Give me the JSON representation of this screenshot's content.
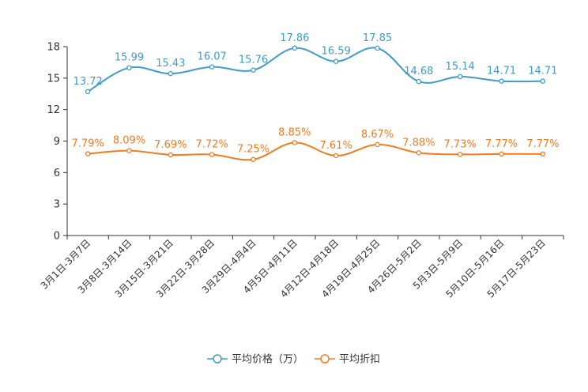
{
  "chart_data": {
    "type": "line",
    "categories": [
      "3月1日-3月7日",
      "3月8日-3月14日",
      "3月15日-3月21日",
      "3月22日-3月28日",
      "3月29日-4月4日",
      "4月5日-4月11日",
      "4月12日-4月18日",
      "4月19日-4月25日",
      "4月26日-5月2日",
      "5月3日-5月9日",
      "5月10日-5月16日",
      "5月17日-5月23日"
    ],
    "yticks": [
      "0",
      "3",
      "6",
      "9",
      "12",
      "15",
      "18"
    ],
    "ylim": [
      0,
      18
    ],
    "series": [
      {
        "name": "平均价格（万）",
        "color": "#3d9ccb",
        "values": [
          13.72,
          15.99,
          15.43,
          16.07,
          15.76,
          17.86,
          16.59,
          17.85,
          14.68,
          15.14,
          14.71,
          14.71
        ],
        "labels": [
          "13.72",
          "15.99",
          "15.43",
          "16.07",
          "15.76",
          "17.86",
          "16.59",
          "17.85",
          "14.68",
          "15.14",
          "14.71",
          "14.71"
        ]
      },
      {
        "name": "平均折扣",
        "color": "#f47a20",
        "values": [
          7.79,
          8.09,
          7.69,
          7.72,
          7.25,
          8.85,
          7.61,
          8.67,
          7.88,
          7.73,
          7.77,
          7.77
        ],
        "labels": [
          "7.79%",
          "8.09%",
          "7.69%",
          "7.72%",
          "7.25%",
          "8.85%",
          "7.61%",
          "8.67%",
          "7.88%",
          "7.73%",
          "7.77%",
          "7.77%"
        ]
      }
    ],
    "legend_position": "bottom-center"
  }
}
